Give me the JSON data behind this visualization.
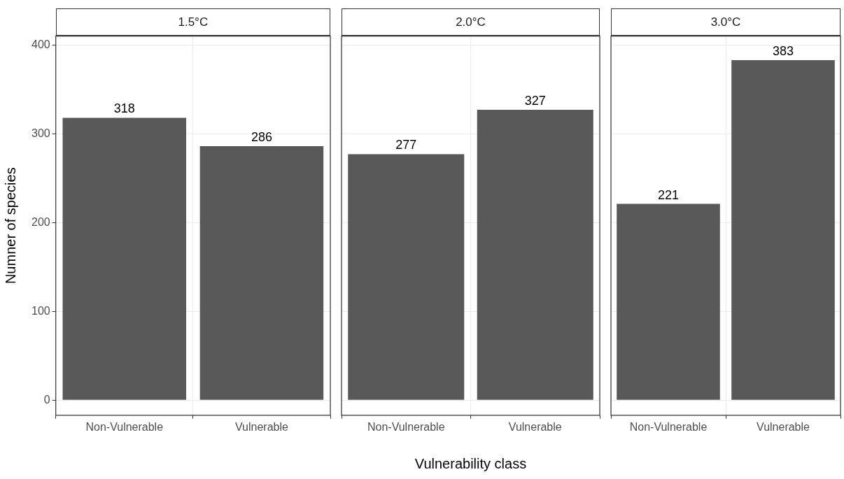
{
  "chart_data": [
    {
      "type": "bar",
      "title": "1.5°C",
      "categories": [
        "Non-Vulnerable",
        "Vulnerable"
      ],
      "values": [
        318,
        286
      ],
      "color": "#595959",
      "ylim": [
        -17,
        410
      ],
      "yticks": [
        0,
        100,
        200,
        300,
        400
      ],
      "grid": true,
      "data_labels": true,
      "ylabel": "Numner of species"
    },
    {
      "type": "bar",
      "title": "2.0°C",
      "categories": [
        "Non-Vulnerable",
        "Vulnerable"
      ],
      "values": [
        277,
        327
      ],
      "color": "#595959",
      "ylim": [
        -17,
        410
      ],
      "yticks": [
        0,
        100,
        200,
        300,
        400
      ],
      "grid": true,
      "data_labels": true,
      "tick_labels": "x",
      "xlabel": "Vulnerability class"
    },
    {
      "type": "bar",
      "title": "3.0°C",
      "categories": [
        "Non-Vulnerable",
        "Vulnerable"
      ],
      "values": [
        221,
        383
      ],
      "color": "#595959",
      "ylim": [
        -17,
        410
      ],
      "yticks": [
        0,
        100,
        200,
        300,
        400
      ],
      "grid": true,
      "data_labels": true,
      "tick_labels": "x"
    }
  ]
}
